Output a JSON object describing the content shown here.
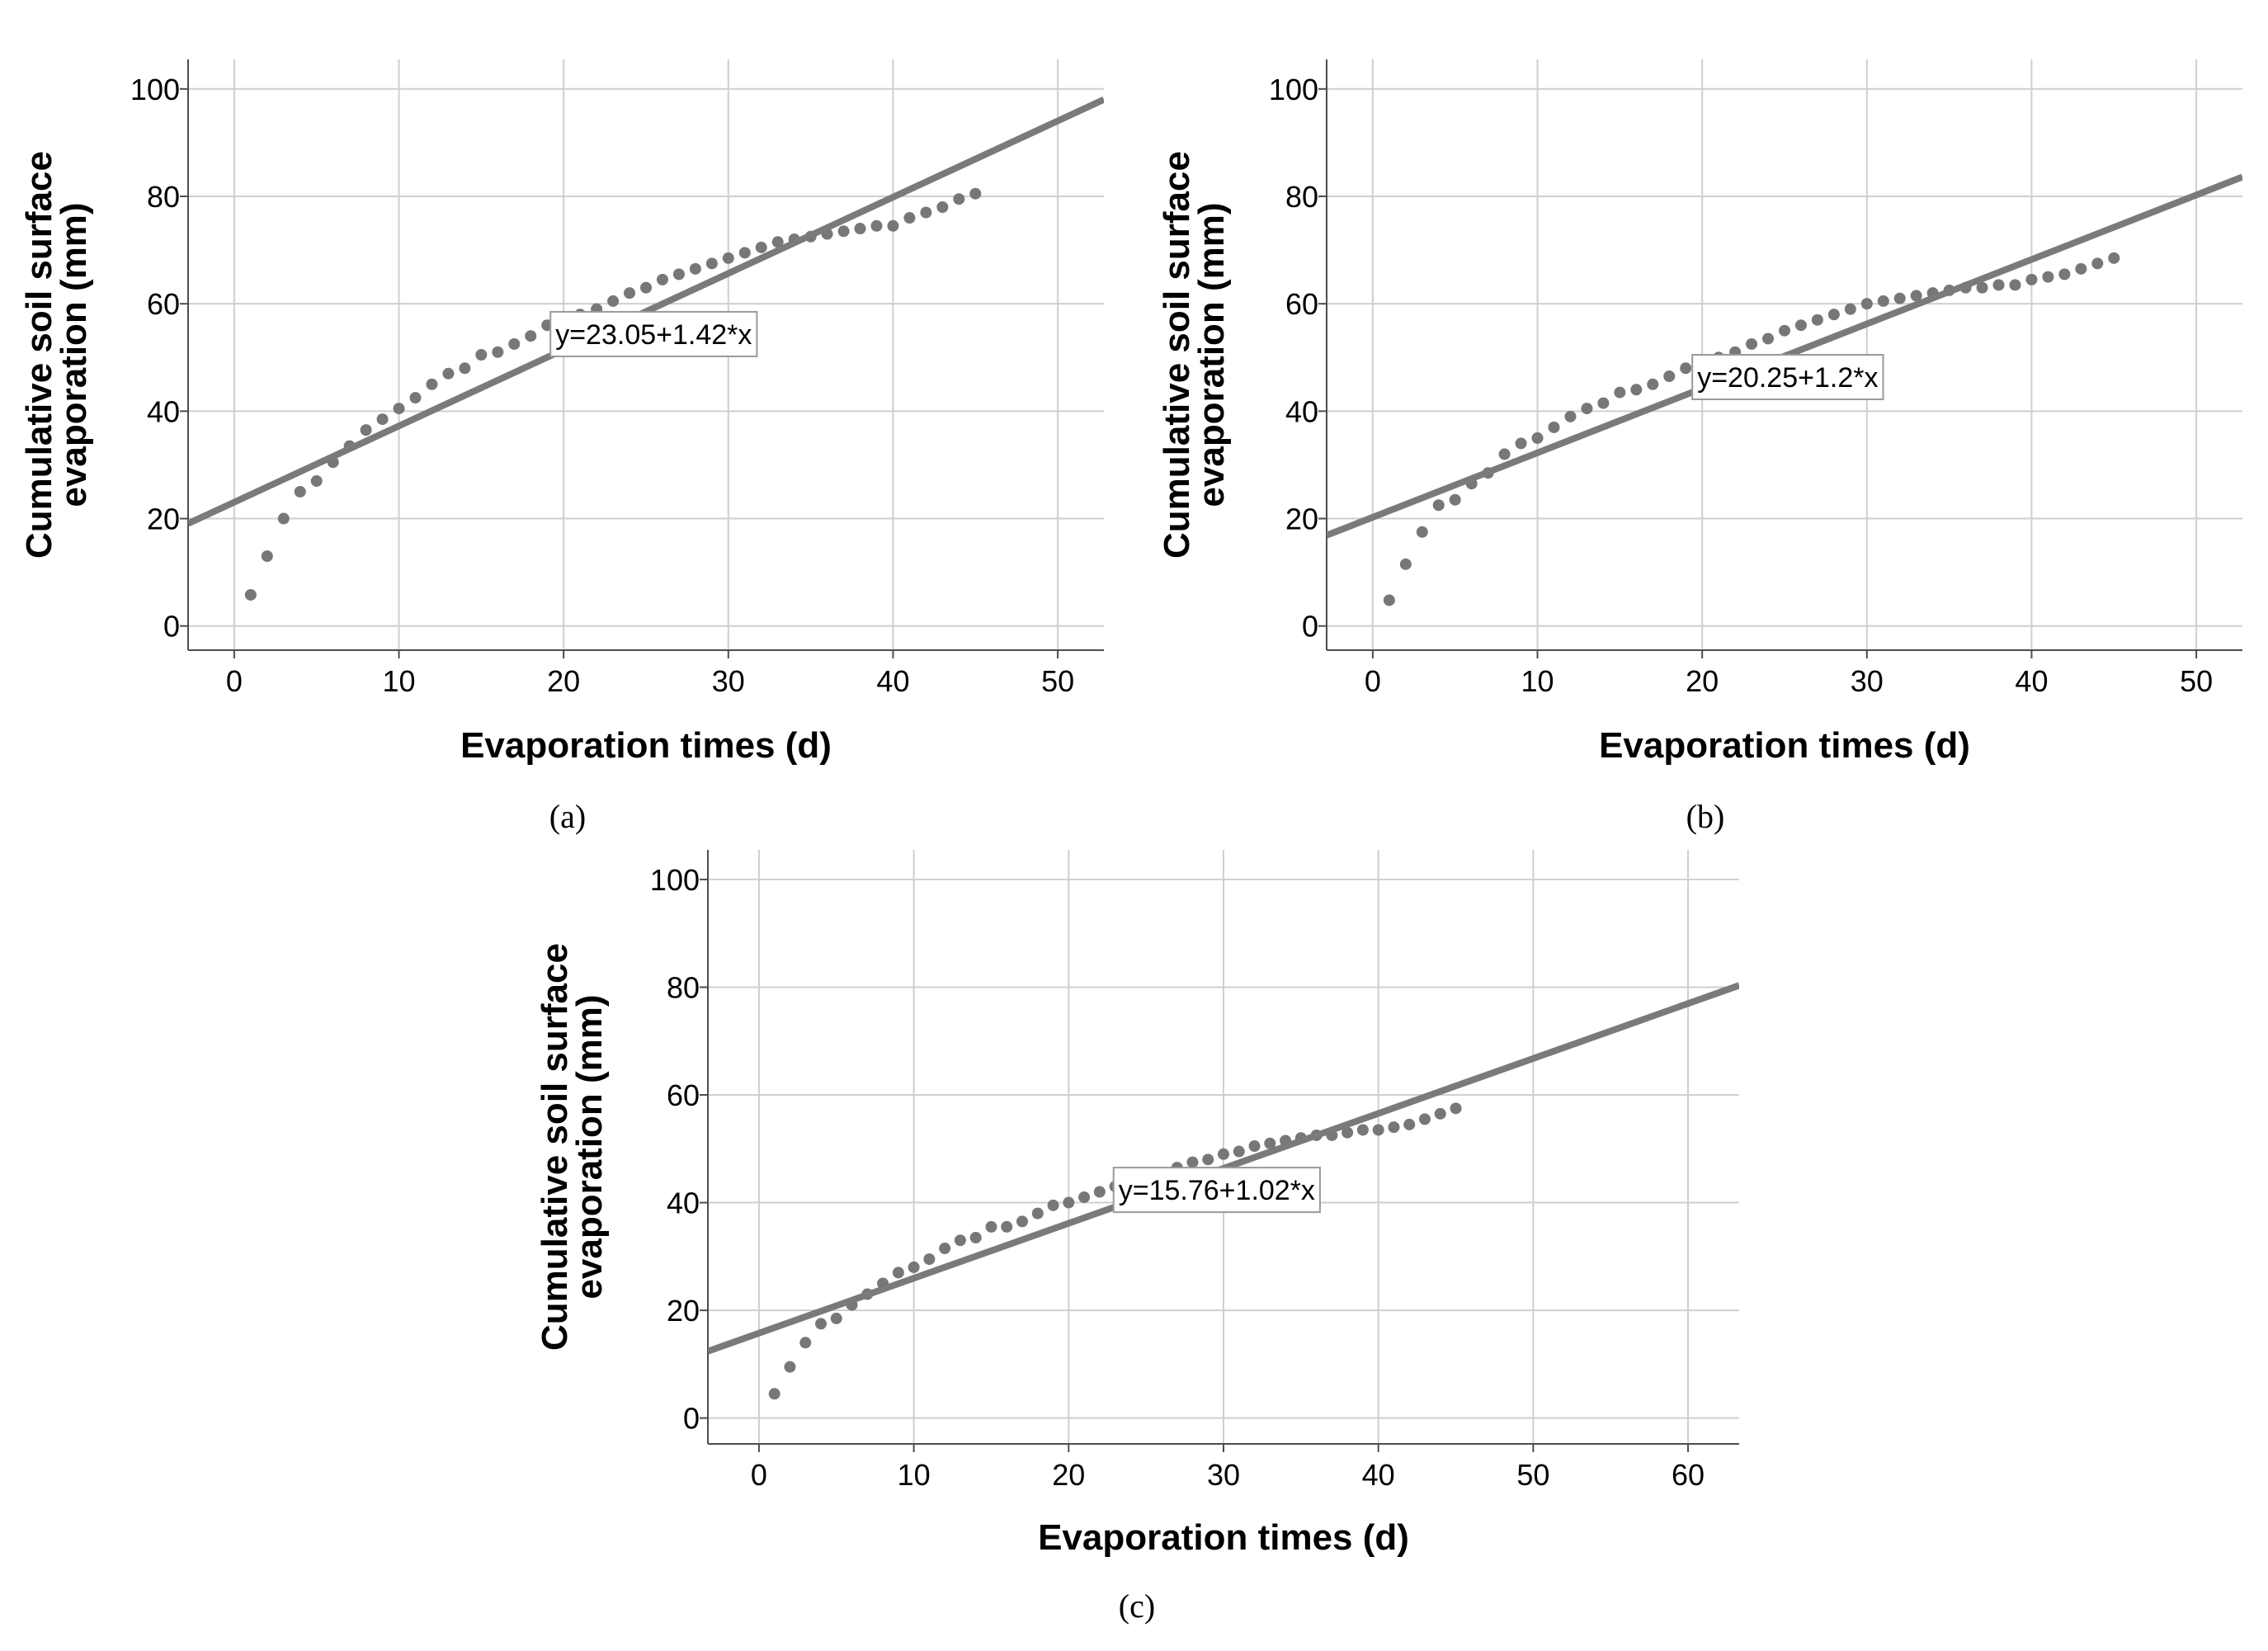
{
  "figure": {
    "panel_labels": [
      "(a)",
      "(b)",
      "(c)"
    ]
  },
  "chart_data": [
    {
      "type": "scatter",
      "panel": "(a)",
      "xlabel": "Evaporation times (d)",
      "ylabel_lines": [
        "Cumulative soil surface",
        "evaporation (mm)"
      ],
      "xlim": [
        -2.8,
        52.8
      ],
      "ylim": [
        -4.5,
        105.5
      ],
      "xticks": [
        0,
        10,
        20,
        30,
        40,
        50
      ],
      "yticks": [
        0,
        20,
        40,
        60,
        80,
        100
      ],
      "grid": true,
      "fit_line": {
        "intercept": 23.05,
        "slope": 1.42
      },
      "equation_label": "y=23.05+1.42*x",
      "equation_anchor": {
        "x": 19.2,
        "y": 58.5
      },
      "marker_color": "#777777",
      "line_color": "#7a7a7a",
      "x": [
        1,
        2,
        3,
        4,
        5,
        6,
        7,
        8,
        9,
        10,
        11,
        12,
        13,
        14,
        15,
        16,
        17,
        18,
        19,
        20,
        21,
        22,
        23,
        24,
        25,
        26,
        27,
        28,
        29,
        30,
        31,
        32,
        33,
        34,
        35,
        36,
        37,
        38,
        39,
        40,
        41,
        42,
        43,
        44,
        45
      ],
      "y": [
        5.8,
        13,
        20,
        25,
        27,
        30.5,
        33.5,
        36.5,
        38.5,
        40.5,
        42.5,
        45,
        47,
        48,
        50.5,
        51,
        52.5,
        54,
        56,
        57,
        58,
        59,
        60.5,
        62,
        63,
        64.5,
        65.5,
        66.5,
        67.5,
        68.5,
        69.5,
        70.5,
        71.5,
        72,
        72.5,
        73,
        73.5,
        74,
        74.5,
        74.5,
        76,
        77,
        78,
        79.5,
        80.5
      ]
    },
    {
      "type": "scatter",
      "panel": "(b)",
      "xlabel": "Evaporation times (d)",
      "ylabel_lines": [
        "Cumulative soil surface",
        "evaporation (mm)"
      ],
      "xlim": [
        -2.8,
        52.8
      ],
      "ylim": [
        -4.5,
        105.5
      ],
      "xticks": [
        0,
        10,
        20,
        30,
        40,
        50
      ],
      "yticks": [
        0,
        20,
        40,
        60,
        80,
        100
      ],
      "grid": true,
      "fit_line": {
        "intercept": 20.25,
        "slope": 1.2
      },
      "equation_label": "y=20.25+1.2*x",
      "equation_anchor": {
        "x": 19.4,
        "y": 50.5
      },
      "marker_color": "#777777",
      "line_color": "#7a7a7a",
      "x": [
        1,
        2,
        3,
        4,
        5,
        6,
        7,
        8,
        9,
        10,
        11,
        12,
        13,
        14,
        15,
        16,
        17,
        18,
        19,
        20,
        21,
        22,
        23,
        24,
        25,
        26,
        27,
        28,
        29,
        30,
        31,
        32,
        33,
        34,
        35,
        36,
        37,
        38,
        39,
        40,
        41,
        42,
        43,
        44,
        45
      ],
      "y": [
        4.8,
        11.5,
        17.5,
        22.5,
        23.5,
        26.5,
        28.5,
        32,
        34,
        35,
        37,
        39,
        40.5,
        41.5,
        43.5,
        44,
        45,
        46.5,
        48,
        49,
        50,
        51,
        52.5,
        53.5,
        55,
        56,
        57,
        58,
        59,
        60,
        60.5,
        61,
        61.5,
        62,
        62.5,
        63,
        63,
        63.5,
        63.5,
        64.5,
        65,
        65.5,
        66.5,
        67.5,
        68.5
      ]
    },
    {
      "type": "scatter",
      "panel": "(c)",
      "xlabel": "Evaporation times (d)",
      "ylabel_lines": [
        "Cumulative soil surface",
        "evaporation (mm)"
      ],
      "xlim": [
        -3.3,
        63.3
      ],
      "ylim": [
        -4.8,
        105.5
      ],
      "xticks": [
        0,
        10,
        20,
        30,
        40,
        50,
        60
      ],
      "yticks": [
        0,
        20,
        40,
        60,
        80,
        100
      ],
      "grid": true,
      "fit_line": {
        "intercept": 15.76,
        "slope": 1.02
      },
      "equation_label": "y=15.76+1.02*x",
      "equation_anchor": {
        "x": 22.9,
        "y": 46.5
      },
      "marker_color": "#777777",
      "line_color": "#7a7a7a",
      "x": [
        1,
        2,
        3,
        4,
        5,
        6,
        7,
        8,
        9,
        10,
        11,
        12,
        13,
        14,
        15,
        16,
        17,
        18,
        19,
        20,
        21,
        22,
        23,
        24,
        25,
        26,
        27,
        28,
        29,
        30,
        31,
        32,
        33,
        34,
        35,
        36,
        37,
        38,
        39,
        40,
        41,
        42,
        43,
        44,
        45
      ],
      "y": [
        4.5,
        9.5,
        14,
        17.5,
        18.5,
        21,
        23,
        25,
        27,
        28,
        29.5,
        31.5,
        33,
        33.5,
        35.5,
        35.5,
        36.5,
        38,
        39.5,
        40,
        41,
        42,
        43,
        44,
        45,
        45.5,
        46.5,
        47.5,
        48,
        49,
        49.5,
        50.5,
        51,
        51.5,
        52,
        52.5,
        52.5,
        53,
        53.5,
        53.5,
        54,
        54.5,
        55.5,
        56.5,
        57.5
      ]
    }
  ]
}
